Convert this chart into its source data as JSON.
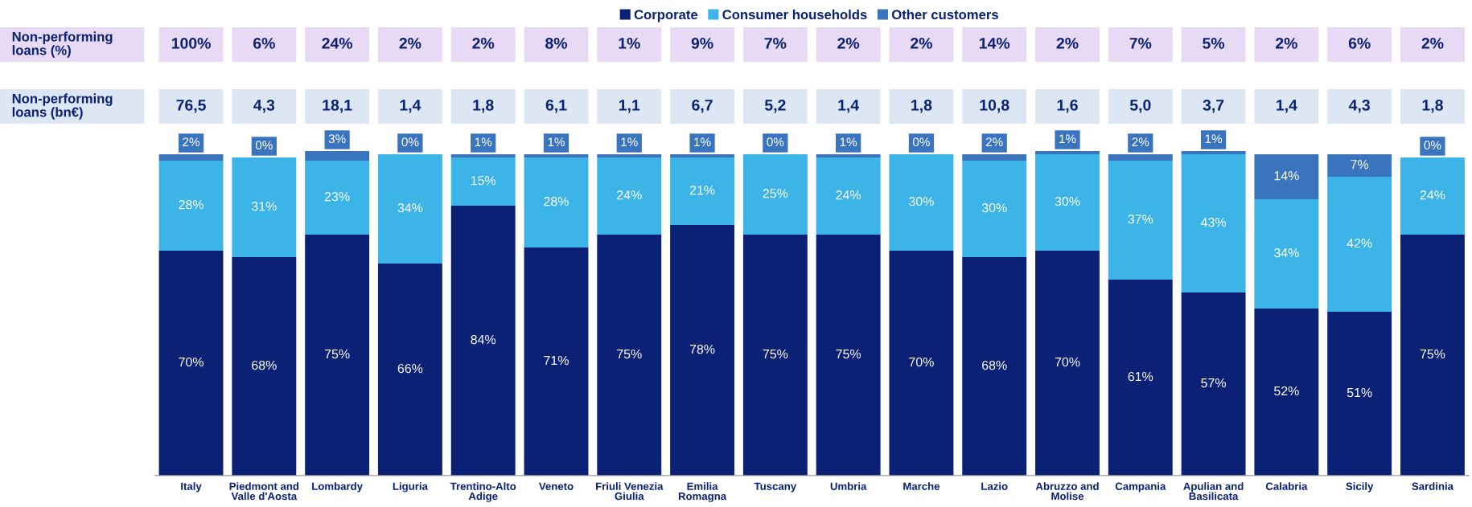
{
  "chart_data": {
    "type": "bar",
    "stacked": true,
    "tick_labels": "x",
    "legend": "top",
    "grid": false,
    "categories": [
      "Italy",
      "Piedmont and\nValle d'Aosta",
      "Lombardy",
      "Liguria",
      "Trentino-Alto\nAdige",
      "Veneto",
      "Friuli Venezia\nGiulia",
      "Emilia\nRomagna",
      "Tuscany",
      "Umbria",
      "Marche",
      "Lazio",
      "Abruzzo and\nMolise",
      "Campania",
      "Apulian and\nBasilicata",
      "Calabria",
      "Sicily",
      "Sardinia"
    ],
    "series": [
      {
        "name": "Corporate",
        "color": "#0a2175",
        "values": [
          70,
          68,
          75,
          66,
          84,
          71,
          75,
          78,
          75,
          75,
          70,
          68,
          70,
          61,
          57,
          52,
          51,
          75
        ],
        "value_labels": [
          "70%",
          "68%",
          "75%",
          "66%",
          "84%",
          "71%",
          "75%",
          "78%",
          "75%",
          "75%",
          "70%",
          "68%",
          "70%",
          "61%",
          "57%",
          "52%",
          "51%",
          "75%"
        ]
      },
      {
        "name": "Consumer households",
        "color": "#3cb4e7",
        "values": [
          28,
          31,
          23,
          34,
          15,
          28,
          24,
          21,
          25,
          24,
          30,
          30,
          30,
          37,
          43,
          34,
          42,
          24
        ],
        "value_labels": [
          "28%",
          "31%",
          "23%",
          "34%",
          "15%",
          "28%",
          "24%",
          "21%",
          "25%",
          "24%",
          "30%",
          "30%",
          "30%",
          "37%",
          "43%",
          "34%",
          "42%",
          "24%"
        ]
      },
      {
        "name": "Other customers",
        "color": "#3a74bf",
        "values": [
          2,
          0,
          3,
          0,
          1,
          1,
          1,
          1,
          0,
          1,
          0,
          2,
          1,
          2,
          1,
          14,
          7,
          0
        ],
        "value_labels": [
          "2%",
          "0%",
          "3%",
          "0%",
          "1%",
          "1%",
          "1%",
          "1%",
          "0%",
          "1%",
          "0%",
          "2%",
          "1%",
          "2%",
          "1%",
          "14%",
          "7%",
          "0%"
        ]
      }
    ],
    "annotations": [
      "Non-performing\nloans (%)",
      "100%",
      "6%",
      "24%",
      "2%",
      "2%",
      "8%",
      "1%",
      "9%",
      "7%",
      "2%",
      "2%",
      "14%",
      "2%",
      "7%",
      "5%",
      "2%",
      "6%",
      "2%",
      "Non-performing\nloans (bn€)",
      "76,5",
      "4,3",
      "18,1",
      "1,4",
      "1,8",
      "6,1",
      "1,1",
      "6,7",
      "5,2",
      "1,4",
      "1,8",
      "10,8",
      "1,6",
      "5,0",
      "3,7",
      "1,4",
      "4,3",
      "1,8"
    ]
  }
}
